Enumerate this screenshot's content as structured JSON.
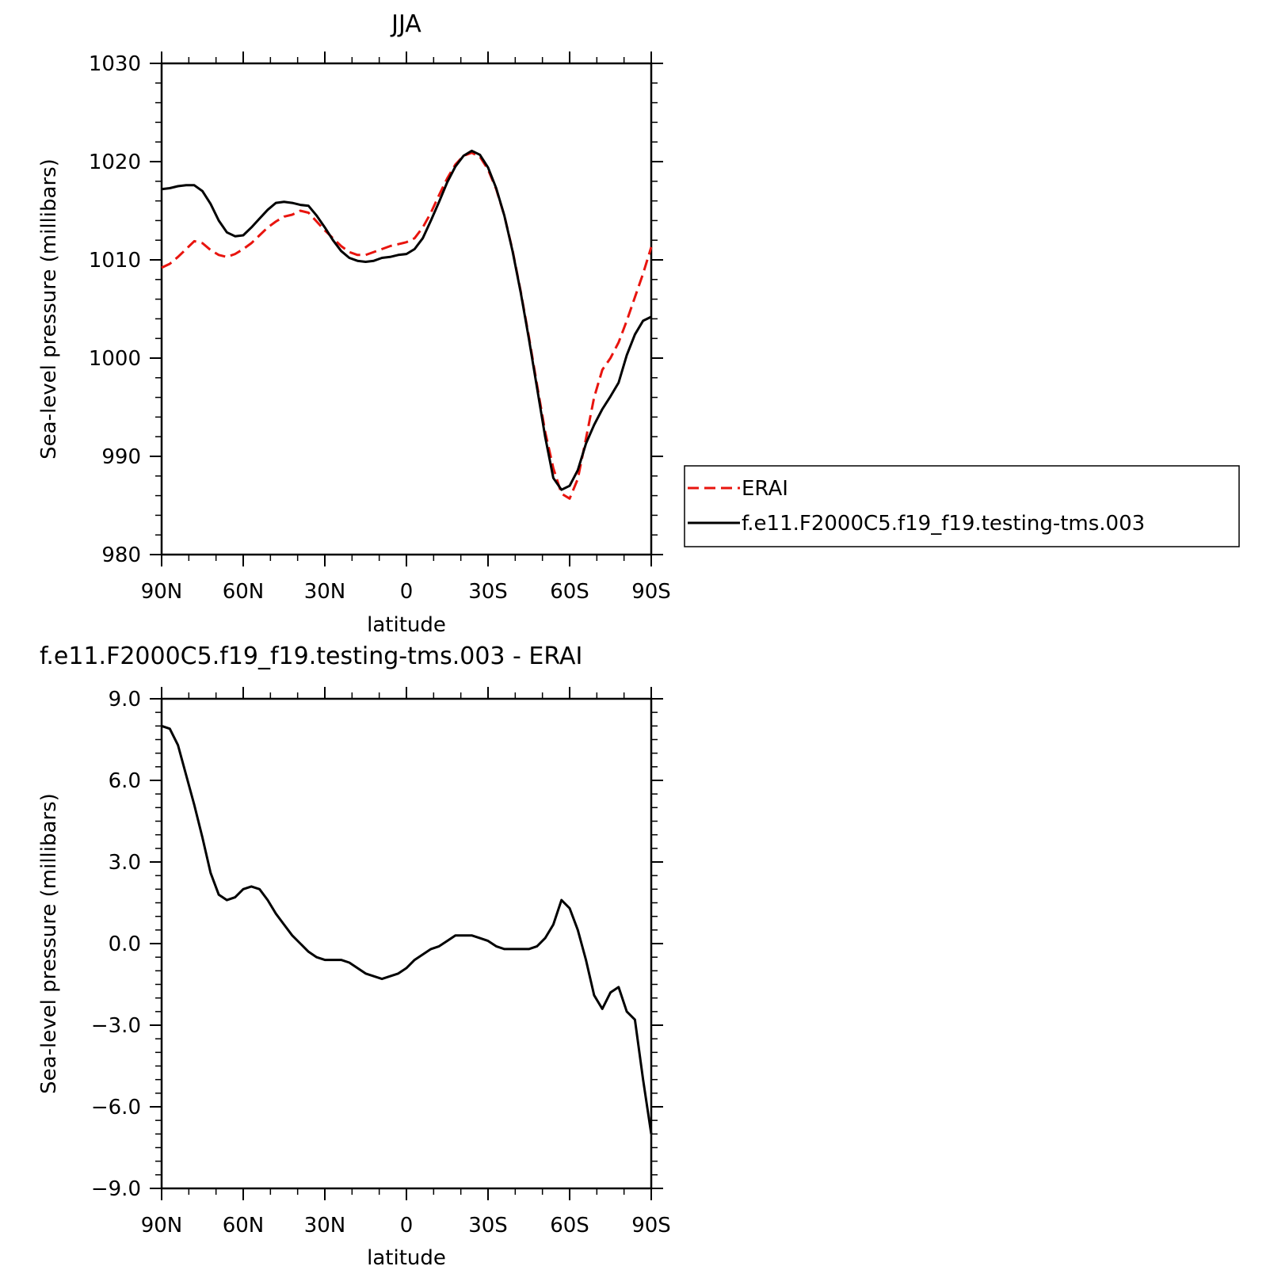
{
  "chart_data": [
    {
      "type": "line",
      "title": "JJA",
      "xlabel": "latitude",
      "ylabel": "Sea-level pressure (millibars)",
      "xlim": [
        90,
        -90
      ],
      "ylim": [
        980,
        1030
      ],
      "xticks": [
        90,
        60,
        30,
        0,
        -30,
        -60,
        -90
      ],
      "xtick_labels": [
        "90N",
        "60N",
        "30N",
        "0",
        "30S",
        "60S",
        "90S"
      ],
      "yticks": [
        980,
        990,
        1000,
        1010,
        1020,
        1030
      ],
      "ytick_labels": [
        "980",
        "990",
        "1000",
        "1010",
        "1020",
        "1030"
      ],
      "legend_position": "right",
      "series": [
        {
          "name": "ERAI",
          "color": "#e8140e",
          "dash": "dashed",
          "x": [
            90,
            87,
            84,
            81,
            78,
            75,
            72,
            69,
            66,
            63,
            60,
            57,
            54,
            51,
            48,
            45,
            42,
            39,
            36,
            33,
            30,
            27,
            24,
            21,
            18,
            15,
            12,
            9,
            6,
            3,
            0,
            -3,
            -6,
            -9,
            -12,
            -15,
            -18,
            -21,
            -24,
            -27,
            -30,
            -33,
            -36,
            -39,
            -42,
            -45,
            -48,
            -51,
            -54,
            -57,
            -60,
            -63,
            -66,
            -69,
            -72,
            -75,
            -78,
            -81,
            -84,
            -87,
            -90
          ],
          "y": [
            1009.2,
            1009.6,
            1010.3,
            1011.1,
            1011.9,
            1011.7,
            1011.0,
            1010.5,
            1010.3,
            1010.6,
            1011.1,
            1011.7,
            1012.5,
            1013.3,
            1013.9,
            1014.4,
            1014.6,
            1015.0,
            1014.8,
            1013.9,
            1013.0,
            1012.2,
            1011.4,
            1010.8,
            1010.5,
            1010.5,
            1010.8,
            1011.1,
            1011.4,
            1011.6,
            1011.8,
            1012.2,
            1013.3,
            1014.8,
            1016.6,
            1018.3,
            1019.7,
            1020.6,
            1020.9,
            1020.5,
            1019.2,
            1017.2,
            1014.5,
            1011.0,
            1006.8,
            1002.2,
            997.3,
            992.5,
            988.8,
            986.2,
            985.7,
            987.7,
            991.8,
            996.0,
            998.8,
            1000.0,
            1001.6,
            1003.8,
            1006.2,
            1008.6,
            1011.3
          ]
        },
        {
          "name": "f.e11.F2000C5.f19_f19.testing-tms.003",
          "color": "#000000",
          "dash": "solid",
          "x": [
            90,
            87,
            84,
            81,
            78,
            75,
            72,
            69,
            66,
            63,
            60,
            57,
            54,
            51,
            48,
            45,
            42,
            39,
            36,
            33,
            30,
            27,
            24,
            21,
            18,
            15,
            12,
            9,
            6,
            3,
            0,
            -3,
            -6,
            -9,
            -12,
            -15,
            -18,
            -21,
            -24,
            -27,
            -30,
            -33,
            -36,
            -39,
            -42,
            -45,
            -48,
            -51,
            -54,
            -57,
            -60,
            -63,
            -66,
            -69,
            -72,
            -75,
            -78,
            -81,
            -84,
            -87,
            -90
          ],
          "y": [
            1017.2,
            1017.3,
            1017.5,
            1017.6,
            1017.6,
            1017.0,
            1015.7,
            1014.0,
            1012.8,
            1012.4,
            1012.5,
            1013.3,
            1014.2,
            1015.1,
            1015.8,
            1015.9,
            1015.8,
            1015.6,
            1015.5,
            1014.5,
            1013.3,
            1012.0,
            1010.9,
            1010.2,
            1009.9,
            1009.8,
            1009.9,
            1010.2,
            1010.3,
            1010.5,
            1010.6,
            1011.1,
            1012.2,
            1014.0,
            1015.9,
            1017.9,
            1019.5,
            1020.6,
            1021.1,
            1020.7,
            1019.4,
            1017.3,
            1014.5,
            1010.9,
            1006.7,
            1002.0,
            997.0,
            992.0,
            987.8,
            986.6,
            987.0,
            988.6,
            991.3,
            993.2,
            994.8,
            996.1,
            997.5,
            1000.3,
            1002.4,
            1003.8,
            1004.2
          ]
        }
      ]
    },
    {
      "type": "line",
      "title": "f.e11.F2000C5.f19_f19.testing-tms.003 - ERAI",
      "xlabel": "latitude",
      "ylabel": "Sea-level pressure (millibars)",
      "xlim": [
        90,
        -90
      ],
      "ylim": [
        -9.0,
        9.0
      ],
      "xticks": [
        90,
        60,
        30,
        0,
        -30,
        -60,
        -90
      ],
      "xtick_labels": [
        "90N",
        "60N",
        "30N",
        "0",
        "30S",
        "60S",
        "90S"
      ],
      "yticks": [
        -9.0,
        -6.0,
        -3.0,
        0.0,
        3.0,
        6.0,
        9.0
      ],
      "ytick_labels": [
        "−9.0",
        "−6.0",
        "−3.0",
        "0.0",
        "3.0",
        "6.0",
        "9.0"
      ],
      "series": [
        {
          "color": "#000000",
          "dash": "solid",
          "x": [
            90,
            87,
            84,
            81,
            78,
            75,
            72,
            69,
            66,
            63,
            60,
            57,
            54,
            51,
            48,
            45,
            42,
            39,
            36,
            33,
            30,
            27,
            24,
            21,
            18,
            15,
            12,
            9,
            6,
            3,
            0,
            -3,
            -6,
            -9,
            -12,
            -15,
            -18,
            -21,
            -24,
            -27,
            -30,
            -33,
            -36,
            -39,
            -42,
            -45,
            -48,
            -51,
            -54,
            -57,
            -60,
            -63,
            -66,
            -69,
            -72,
            -75,
            -78,
            -81,
            -84,
            -87,
            -90
          ],
          "y": [
            8.0,
            7.9,
            7.3,
            6.2,
            5.1,
            3.9,
            2.6,
            1.8,
            1.6,
            1.7,
            2.0,
            2.1,
            2.0,
            1.6,
            1.1,
            0.7,
            0.3,
            0.0,
            -0.3,
            -0.5,
            -0.6,
            -0.6,
            -0.6,
            -0.7,
            -0.9,
            -1.1,
            -1.2,
            -1.3,
            -1.2,
            -1.1,
            -0.9,
            -0.6,
            -0.4,
            -0.2,
            -0.1,
            0.1,
            0.3,
            0.3,
            0.3,
            0.2,
            0.1,
            -0.1,
            -0.2,
            -0.2,
            -0.2,
            -0.2,
            -0.1,
            0.2,
            0.7,
            1.6,
            1.3,
            0.5,
            -0.6,
            -1.9,
            -2.4,
            -1.8,
            -1.6,
            -2.5,
            -2.8,
            -5.0,
            -7.0
          ]
        }
      ]
    }
  ]
}
